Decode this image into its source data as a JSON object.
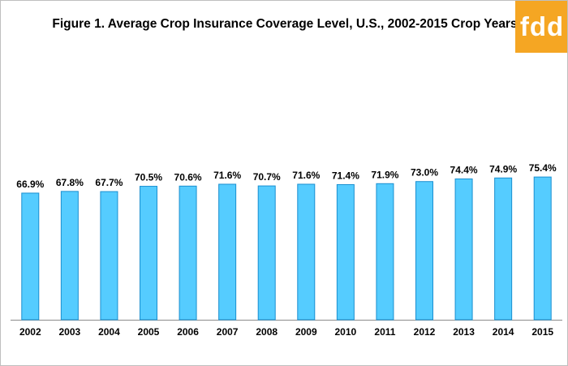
{
  "logo": {
    "text": "fdd",
    "color": "#f5a623"
  },
  "chart_data": {
    "type": "bar",
    "title": "Figure 1. Average Crop Insurance Coverage Level, U.S., 2002-2015 Crop Years",
    "xlabel": "",
    "ylabel": "",
    "ylim": [
      0,
      100
    ],
    "grid": false,
    "legend": "none",
    "bar_color": "#55ccff",
    "bar_border_color": "#1a8fd0",
    "categories": [
      "2002",
      "2003",
      "2004",
      "2005",
      "2006",
      "2007",
      "2008",
      "2009",
      "2010",
      "2011",
      "2012",
      "2013",
      "2014",
      "2015"
    ],
    "values": [
      66.9,
      67.8,
      67.7,
      70.5,
      70.6,
      71.6,
      70.7,
      71.6,
      71.4,
      71.9,
      73.0,
      74.4,
      74.9,
      75.4
    ],
    "value_labels": [
      "66.9%",
      "67.8%",
      "67.7%",
      "70.5%",
      "70.6%",
      "71.6%",
      "70.7%",
      "71.6%",
      "71.4%",
      "71.9%",
      "73.0%",
      "74.4%",
      "74.9%",
      "75.4%"
    ]
  }
}
